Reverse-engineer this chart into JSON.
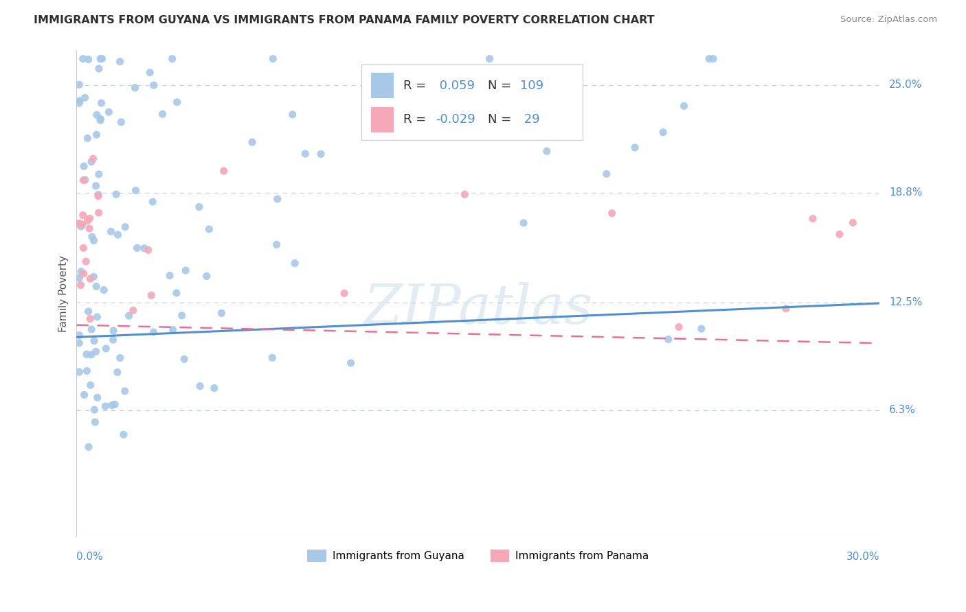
{
  "title": "IMMIGRANTS FROM GUYANA VS IMMIGRANTS FROM PANAMA FAMILY POVERTY CORRELATION CHART",
  "source": "Source: ZipAtlas.com",
  "ylabel": "Family Poverty",
  "xlim": [
    0.0,
    0.3
  ],
  "ylim": [
    -0.01,
    0.27
  ],
  "ytick_positions": [
    0.063,
    0.125,
    0.188,
    0.25
  ],
  "ytick_labels": [
    "6.3%",
    "12.5%",
    "18.8%",
    "25.0%"
  ],
  "guyana_color": "#a8c8e8",
  "panama_color": "#f4a8b8",
  "trend_guyana_color": "#5090d0",
  "trend_panama_color": "#e87090",
  "legend_r1_label": "R = ",
  "legend_r1_val": " 0.059",
  "legend_n1_label": "N = ",
  "legend_n1_val": "109",
  "legend_r2_label": "R = ",
  "legend_r2_val": "-0.029",
  "legend_n2_label": "N = ",
  "legend_n2_val": " 29",
  "legend1_label": "Immigrants from Guyana",
  "legend2_label": "Immigrants from Panama",
  "watermark": "ZIPatlas",
  "background_color": "#ffffff",
  "grid_color": "#c0d0e0",
  "title_color": "#303030",
  "axis_label_color": "#555555",
  "tick_color": "#5090d0",
  "legend_text_color": "#5090d0",
  "legend_val_color": "#5090d0",
  "trend_guyana_intercept": 0.105,
  "trend_guyana_slope": 0.065,
  "trend_panama_intercept": 0.112,
  "trend_panama_slope": -0.035
}
